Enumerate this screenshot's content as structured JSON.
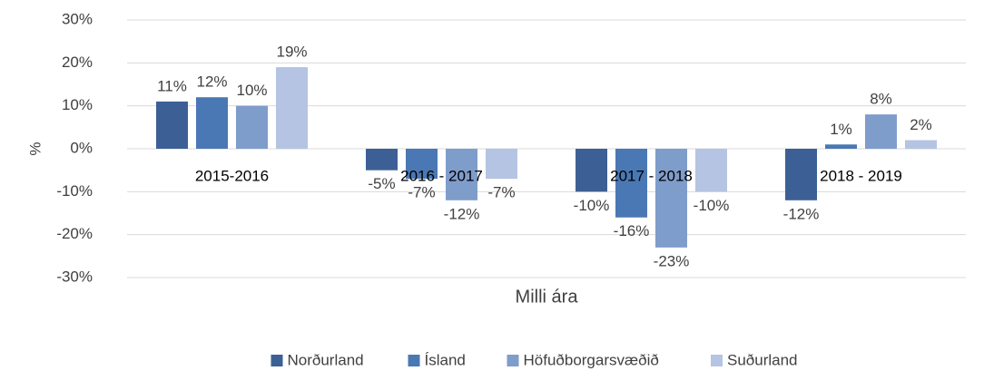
{
  "chart_data": {
    "type": "bar",
    "categories": [
      "2015-2016",
      "2016 - 2017",
      "2017 - 2018",
      "2018 - 2019"
    ],
    "series": [
      {
        "name": "Norðurland",
        "color": "#3c6095",
        "values": [
          11,
          -5,
          -10,
          -12
        ],
        "value_labels": [
          "11%",
          "-5%",
          "-10%",
          "-12%"
        ]
      },
      {
        "name": "Ísland",
        "color": "#4a78b4",
        "values": [
          12,
          -7,
          -16,
          1
        ],
        "value_labels": [
          "12%",
          "-7%",
          "-16%",
          "1%"
        ]
      },
      {
        "name": "Höfuðborgarsvæðið",
        "color": "#7f9dcb",
        "values": [
          10,
          -12,
          -23,
          8
        ],
        "value_labels": [
          "10%",
          "-12%",
          "-23%",
          "8%"
        ]
      },
      {
        "name": "Suðurland",
        "color": "#b4c4e2",
        "values": [
          19,
          -7,
          -10,
          2
        ],
        "value_labels": [
          "19%",
          "-7%",
          "-10%",
          "2%"
        ]
      }
    ],
    "x_label": "Milli ára",
    "y_label": "%",
    "ylim": [
      -30,
      30
    ],
    "yticks": [
      {
        "value": -30,
        "label": "-30%"
      },
      {
        "value": -20,
        "label": "-20%"
      },
      {
        "value": -10,
        "label": "-10%"
      },
      {
        "value": 0,
        "label": "0%"
      },
      {
        "value": 10,
        "label": "10%"
      },
      {
        "value": 20,
        "label": "20%"
      },
      {
        "value": 30,
        "label": "30%"
      }
    ],
    "grid": true,
    "legend": "bottom"
  }
}
